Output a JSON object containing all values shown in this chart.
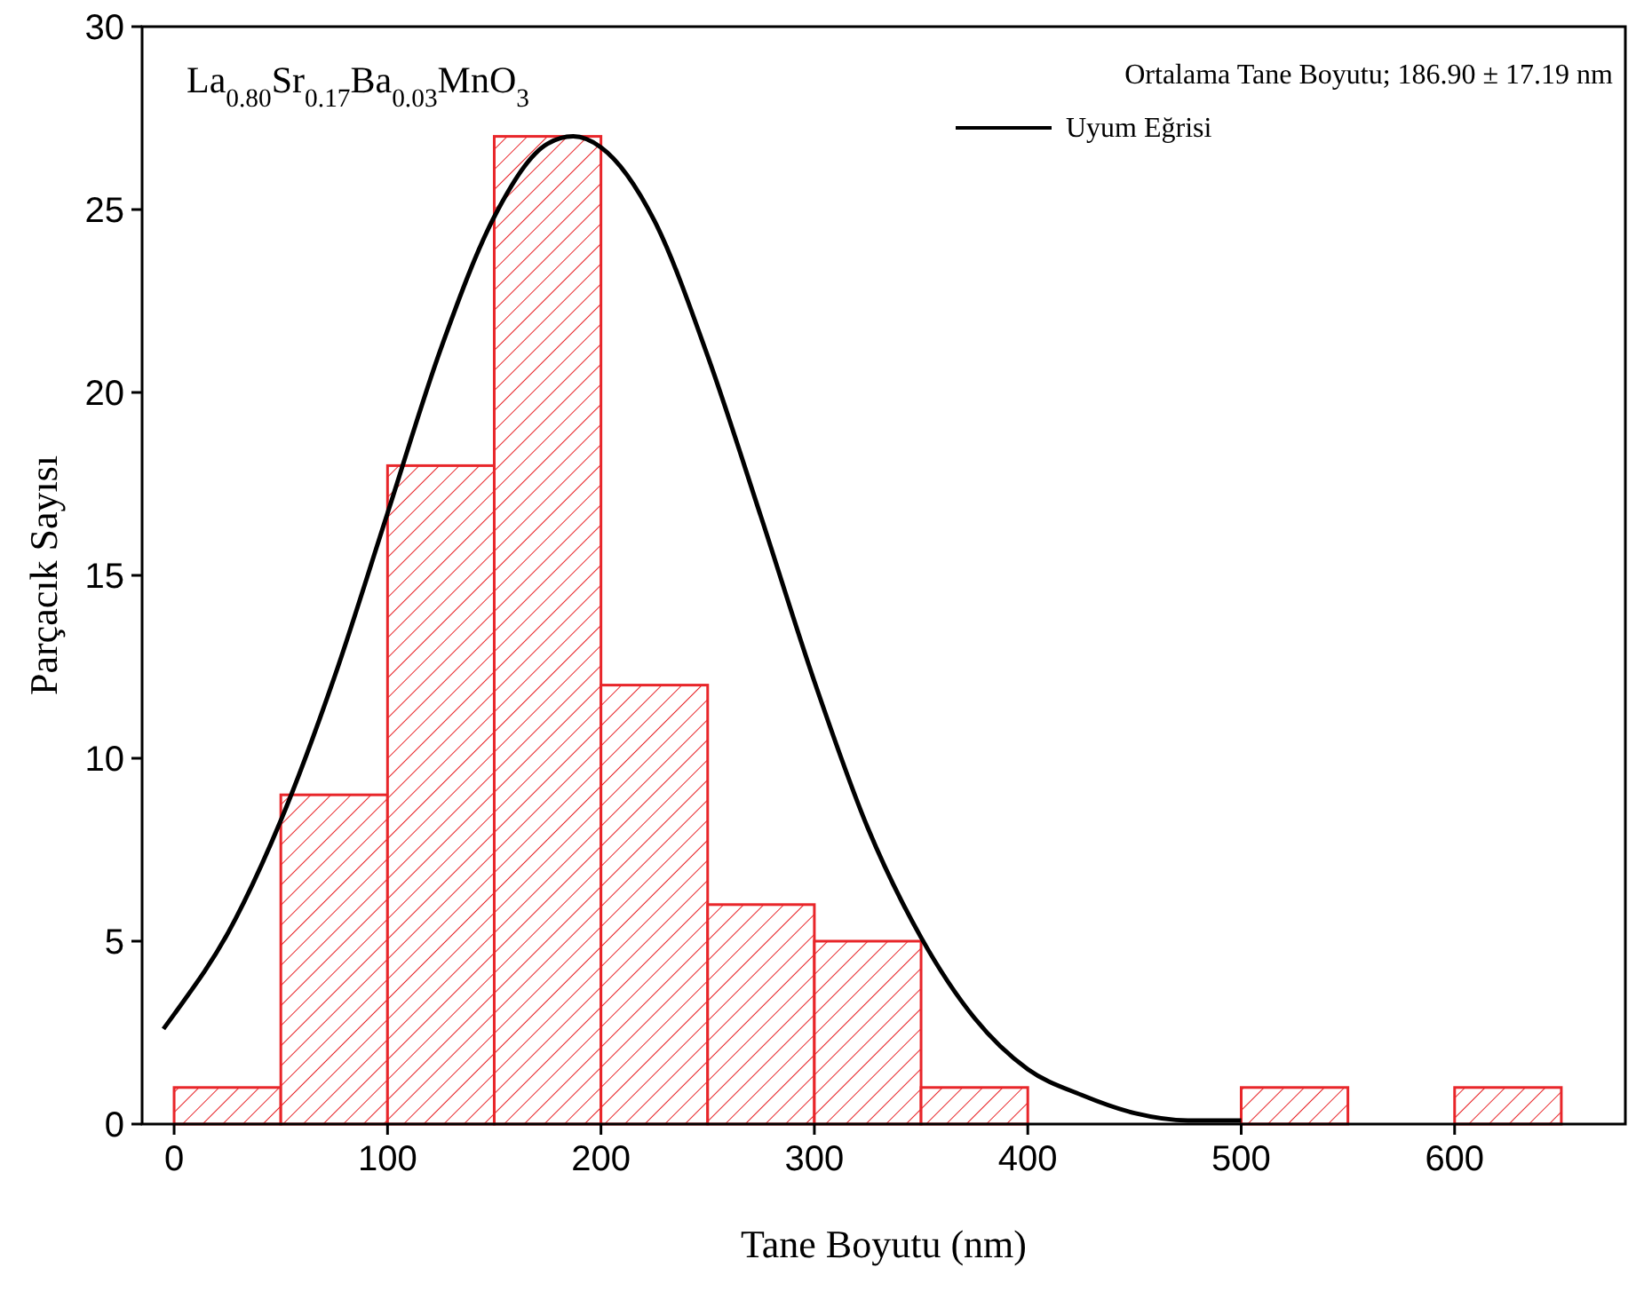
{
  "chart_data": {
    "type": "histogram",
    "xlabel": "Tane Boyutu (nm)",
    "ylabel": "Parçacık Sayısı",
    "bins": [
      0,
      50,
      100,
      150,
      200,
      250,
      300,
      350,
      400,
      450,
      500,
      550,
      600,
      650
    ],
    "values": [
      1,
      9,
      18,
      27,
      12,
      6,
      5,
      1,
      0,
      0,
      1,
      0,
      1
    ],
    "color": "#e8262a",
    "xlim": [
      -15,
      680
    ],
    "xticks": [
      0,
      100,
      200,
      300,
      400,
      500,
      600
    ],
    "ylim": [
      0,
      30
    ],
    "yticks": [
      0,
      5,
      10,
      15,
      20,
      25,
      30
    ],
    "grid": false,
    "legend": "top right",
    "annotations": [
      "La$_{0.80}$Sr$_{0.17}$Ba$_{0.03}$MnO$_{3}$",
      "Ortalama Tane Boyutu; 186.90 ± 17.19 nm"
    ],
    "series": [
      {
        "type": "line",
        "name": "Uyum Eğrisi",
        "color": "#000000",
        "line_style": "solid",
        "x": [
          -5,
          0,
          25,
          50,
          75,
          100,
          125,
          150,
          175,
          187,
          200,
          225,
          250,
          275,
          300,
          325,
          350,
          375,
          400,
          425,
          450,
          475,
          500
        ],
        "values": [
          2.6,
          3.0,
          5.2,
          8.3,
          12.2,
          16.7,
          21.2,
          24.8,
          26.8,
          27,
          26.7,
          24.7,
          21.0,
          16.6,
          12.1,
          8.1,
          5.1,
          2.9,
          1.5,
          0.8,
          0.3,
          0.1,
          0.1
        ]
      }
    ]
  }
}
